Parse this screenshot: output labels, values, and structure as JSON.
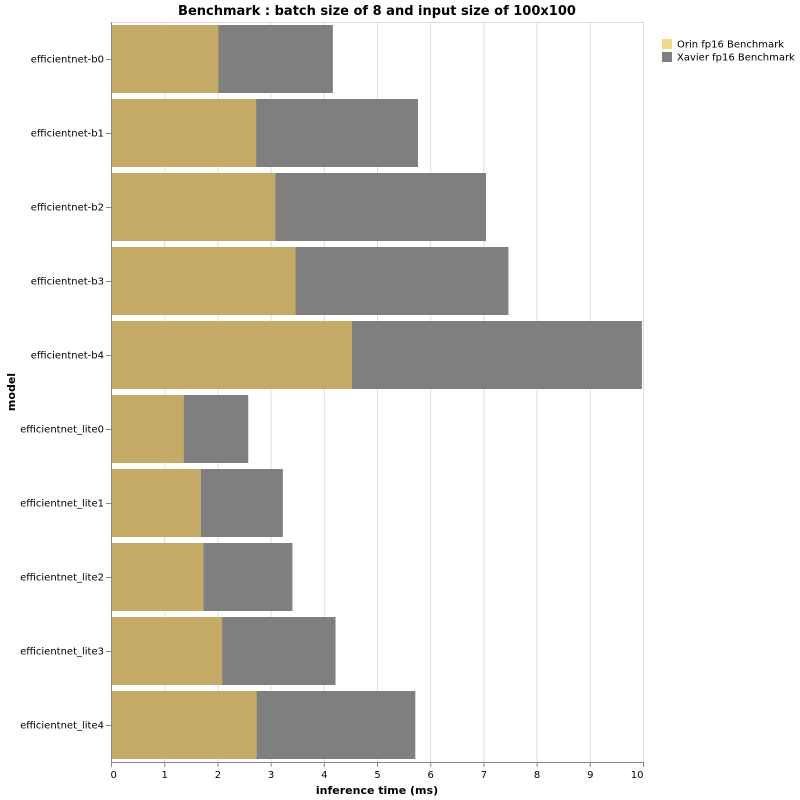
{
  "chart_data": {
    "type": "bar",
    "orientation": "horizontal",
    "title": "Benchmark : batch size of 8 and input size of 100x100",
    "xlabel": "inference time (ms)",
    "ylabel": "model",
    "xlim": [
      0,
      10
    ],
    "xticks": [
      "0",
      "1",
      "2",
      "3",
      "4",
      "5",
      "6",
      "7",
      "8",
      "9",
      "10"
    ],
    "grid": true,
    "legend_position": "top-right",
    "categories": [
      "efficientnet-b0",
      "efficientnet-b1",
      "efficientnet-b2",
      "efficientnet-b3",
      "efficientnet-b4",
      "efficientnet_lite0",
      "efficientnet_lite1",
      "efficientnet_lite2",
      "efficientnet_lite3",
      "efficientnet_lite4"
    ],
    "series": [
      {
        "name": "Xavier fp16 Benchmark",
        "color": "#7f7f7f",
        "legend_color": "#7f7f7f",
        "values": [
          4.17,
          5.77,
          7.05,
          7.47,
          9.98,
          2.58,
          3.23,
          3.41,
          4.22,
          5.72
        ]
      },
      {
        "name": "Orin fp16 Benchmark",
        "color": "#c4a967",
        "legend_color": "#f2d88a",
        "values": [
          2.02,
          2.73,
          3.09,
          3.47,
          4.53,
          1.37,
          1.69,
          1.74,
          2.09,
          2.74
        ]
      }
    ],
    "legend_order": [
      "Orin fp16 Benchmark",
      "Xavier fp16 Benchmark"
    ]
  }
}
